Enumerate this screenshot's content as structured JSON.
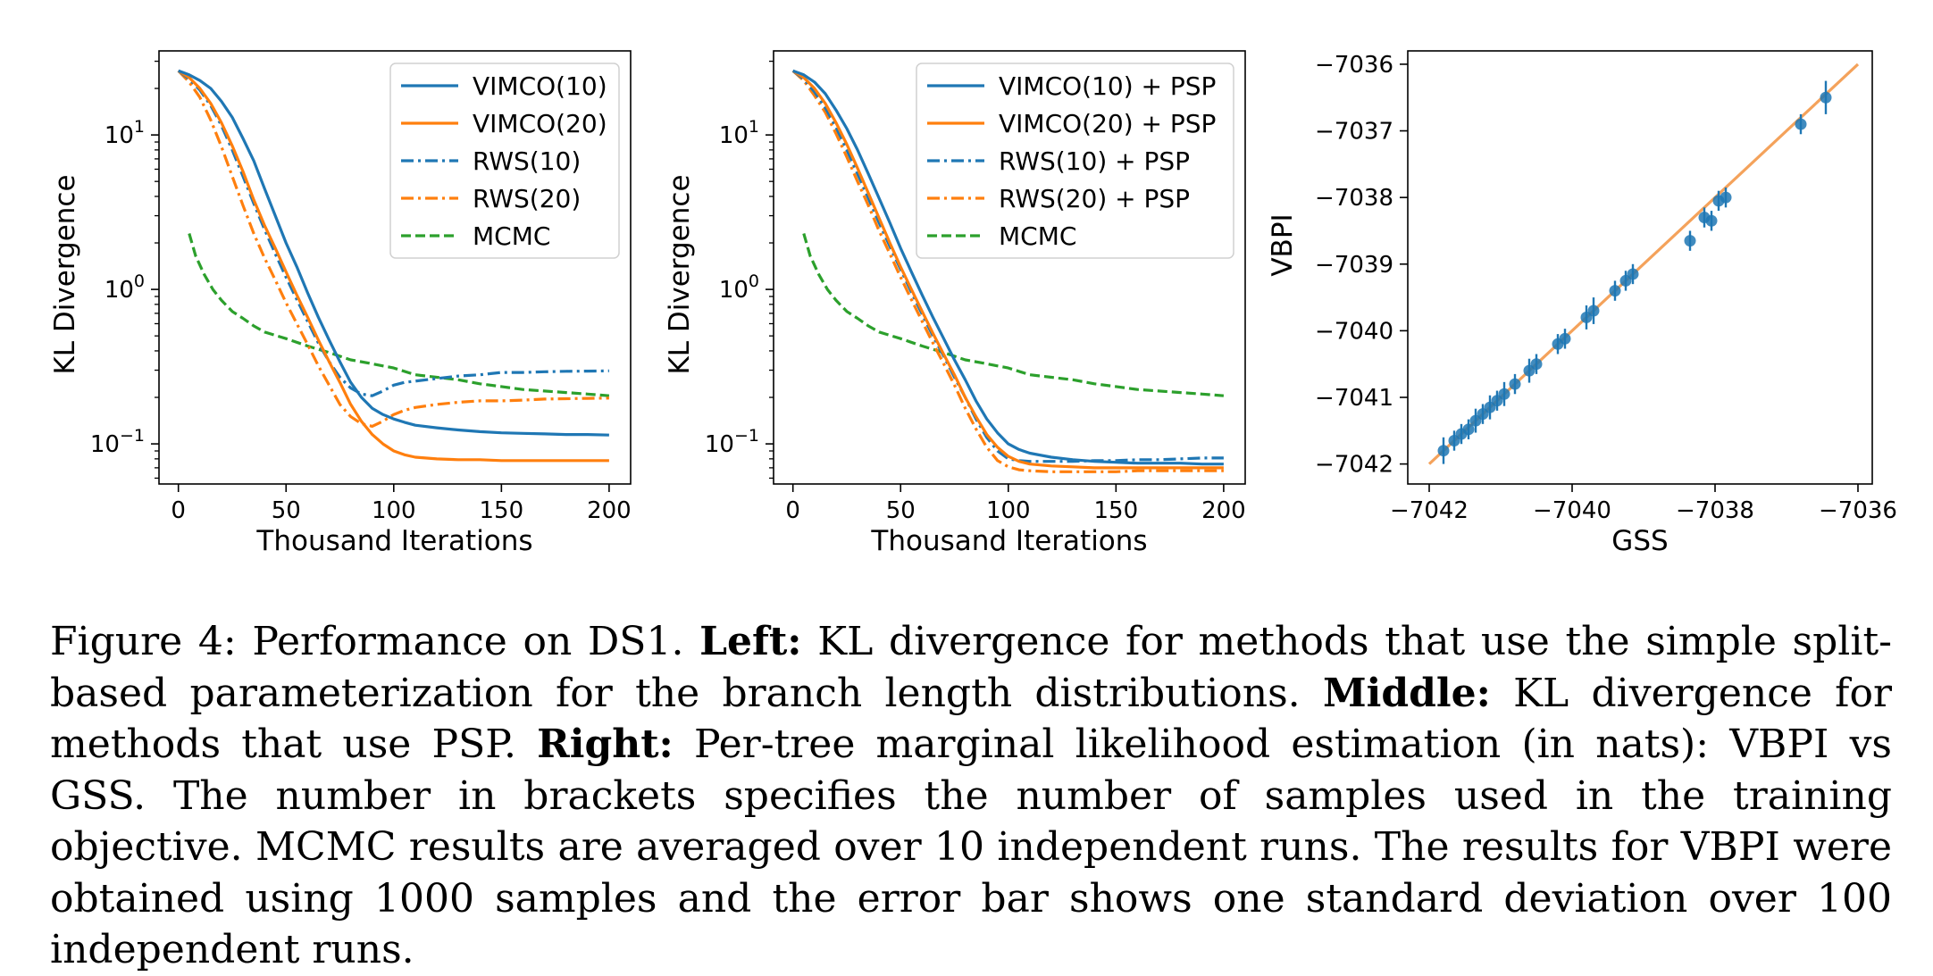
{
  "colors": {
    "blue": "#1f77b4",
    "orange": "#ff7f0e",
    "green": "#2ca02c",
    "fit_line": "#f4a25b"
  },
  "chart_data": [
    {
      "type": "line",
      "xlabel": "Thousand Iterations",
      "ylabel": "KL Divergence",
      "xlim": [
        -9,
        210
      ],
      "ylim": [
        0.055,
        35
      ],
      "yscale": "log",
      "xticks": [
        0,
        50,
        100,
        150,
        200
      ],
      "yticks": [
        {
          "value": 0.1,
          "base": "10",
          "exp": "−1"
        },
        {
          "value": 1,
          "base": "10",
          "exp": "0"
        },
        {
          "value": 10,
          "base": "10",
          "exp": "1"
        }
      ],
      "legend": "upper-right",
      "series": [
        {
          "name": "VIMCO(10)",
          "color": "blue",
          "style": "solid",
          "x": [
            0,
            5,
            10,
            15,
            20,
            25,
            30,
            35,
            40,
            45,
            50,
            55,
            60,
            65,
            70,
            75,
            80,
            85,
            90,
            95,
            100,
            105,
            110,
            120,
            130,
            140,
            150,
            160,
            170,
            180,
            190,
            200
          ],
          "y": [
            26,
            24.5,
            22.5,
            20,
            16.5,
            13,
            9.5,
            6.8,
            4.5,
            3,
            2,
            1.4,
            0.95,
            0.66,
            0.47,
            0.34,
            0.25,
            0.2,
            0.17,
            0.155,
            0.145,
            0.138,
            0.132,
            0.127,
            0.123,
            0.12,
            0.118,
            0.117,
            0.116,
            0.115,
            0.115,
            0.114
          ]
        },
        {
          "name": "VIMCO(20)",
          "color": "orange",
          "style": "solid",
          "x": [
            0,
            5,
            10,
            15,
            20,
            25,
            30,
            35,
            40,
            45,
            50,
            55,
            60,
            65,
            70,
            75,
            80,
            85,
            90,
            95,
            100,
            105,
            110,
            120,
            130,
            140,
            150,
            160,
            170,
            180,
            190,
            200
          ],
          "y": [
            26,
            23.5,
            20,
            16,
            12,
            8.5,
            5.8,
            3.8,
            2.6,
            1.85,
            1.3,
            0.92,
            0.66,
            0.47,
            0.34,
            0.25,
            0.18,
            0.14,
            0.115,
            0.1,
            0.09,
            0.085,
            0.082,
            0.08,
            0.079,
            0.079,
            0.078,
            0.078,
            0.078,
            0.078,
            0.078,
            0.078
          ]
        },
        {
          "name": "RWS(10)",
          "color": "blue",
          "style": "dashdot",
          "x": [
            0,
            5,
            10,
            15,
            20,
            25,
            30,
            35,
            40,
            45,
            50,
            55,
            60,
            65,
            70,
            75,
            80,
            85,
            90,
            95,
            100,
            105,
            110,
            120,
            130,
            140,
            150,
            160,
            170,
            180,
            190,
            200
          ],
          "y": [
            26,
            23,
            19.5,
            15.5,
            11.5,
            8,
            5.4,
            3.6,
            2.45,
            1.7,
            1.2,
            0.86,
            0.62,
            0.45,
            0.34,
            0.27,
            0.23,
            0.21,
            0.205,
            0.22,
            0.24,
            0.25,
            0.255,
            0.265,
            0.275,
            0.28,
            0.29,
            0.29,
            0.293,
            0.295,
            0.296,
            0.297
          ]
        },
        {
          "name": "RWS(20)",
          "color": "orange",
          "style": "dashdot",
          "x": [
            0,
            5,
            10,
            15,
            20,
            25,
            30,
            35,
            40,
            45,
            50,
            55,
            60,
            65,
            70,
            75,
            80,
            85,
            90,
            95,
            100,
            105,
            110,
            120,
            130,
            140,
            150,
            160,
            170,
            180,
            190,
            200
          ],
          "y": [
            26,
            22,
            17.5,
            12.5,
            8.4,
            5.4,
            3.5,
            2.3,
            1.6,
            1.15,
            0.82,
            0.6,
            0.44,
            0.32,
            0.24,
            0.18,
            0.15,
            0.135,
            0.13,
            0.14,
            0.155,
            0.165,
            0.172,
            0.18,
            0.186,
            0.19,
            0.19,
            0.192,
            0.195,
            0.196,
            0.197,
            0.198
          ]
        },
        {
          "name": "MCMC",
          "color": "green",
          "style": "dashed",
          "x": [
            5,
            8,
            12,
            16,
            20,
            25,
            30,
            35,
            40,
            50,
            60,
            70,
            80,
            90,
            100,
            110,
            120,
            130,
            140,
            150,
            160,
            170,
            180,
            190,
            200
          ],
          "y": [
            2.3,
            1.65,
            1.25,
            1.0,
            0.85,
            0.72,
            0.65,
            0.58,
            0.53,
            0.48,
            0.43,
            0.39,
            0.35,
            0.33,
            0.31,
            0.28,
            0.27,
            0.26,
            0.245,
            0.235,
            0.225,
            0.22,
            0.215,
            0.21,
            0.205
          ]
        }
      ]
    },
    {
      "type": "line",
      "xlabel": "Thousand Iterations",
      "ylabel": "KL Divergence",
      "xlim": [
        -9,
        210
      ],
      "ylim": [
        0.055,
        35
      ],
      "yscale": "log",
      "xticks": [
        0,
        50,
        100,
        150,
        200
      ],
      "yticks": [
        {
          "value": 0.1,
          "base": "10",
          "exp": "−1"
        },
        {
          "value": 1,
          "base": "10",
          "exp": "0"
        },
        {
          "value": 10,
          "base": "10",
          "exp": "1"
        }
      ],
      "legend": "upper-right",
      "series": [
        {
          "name": "VIMCO(10) + PSP",
          "color": "blue",
          "style": "solid",
          "x": [
            0,
            5,
            10,
            15,
            20,
            25,
            30,
            35,
            40,
            45,
            50,
            55,
            60,
            65,
            70,
            75,
            80,
            85,
            90,
            95,
            100,
            105,
            110,
            120,
            130,
            140,
            150,
            160,
            170,
            180,
            190,
            200
          ],
          "y": [
            26,
            24.5,
            22,
            18.5,
            14.5,
            11,
            8,
            5.6,
            3.9,
            2.7,
            1.85,
            1.3,
            0.92,
            0.66,
            0.48,
            0.35,
            0.26,
            0.19,
            0.145,
            0.118,
            0.1,
            0.092,
            0.087,
            0.082,
            0.079,
            0.077,
            0.076,
            0.075,
            0.075,
            0.075,
            0.074,
            0.074
          ]
        },
        {
          "name": "VIMCO(20) + PSP",
          "color": "orange",
          "style": "solid",
          "x": [
            0,
            5,
            10,
            15,
            20,
            25,
            30,
            35,
            40,
            45,
            50,
            55,
            60,
            65,
            70,
            75,
            80,
            85,
            90,
            95,
            100,
            105,
            110,
            120,
            130,
            140,
            150,
            160,
            170,
            180,
            190,
            200
          ],
          "y": [
            26,
            23.5,
            20,
            16,
            12,
            8.7,
            6.1,
            4.2,
            2.9,
            2.0,
            1.4,
            1.0,
            0.72,
            0.52,
            0.38,
            0.28,
            0.2,
            0.15,
            0.115,
            0.095,
            0.083,
            0.077,
            0.074,
            0.072,
            0.071,
            0.07,
            0.07,
            0.07,
            0.07,
            0.07,
            0.07,
            0.07
          ]
        },
        {
          "name": "RWS(10) + PSP",
          "color": "blue",
          "style": "dashdot",
          "x": [
            0,
            5,
            10,
            15,
            20,
            25,
            30,
            35,
            40,
            45,
            50,
            55,
            60,
            65,
            70,
            75,
            80,
            85,
            90,
            95,
            100,
            105,
            110,
            120,
            130,
            140,
            150,
            160,
            170,
            180,
            190,
            200
          ],
          "y": [
            26,
            23,
            19,
            15,
            11.2,
            8,
            5.6,
            3.9,
            2.7,
            1.9,
            1.35,
            0.96,
            0.69,
            0.5,
            0.37,
            0.27,
            0.2,
            0.145,
            0.11,
            0.09,
            0.08,
            0.078,
            0.077,
            0.077,
            0.077,
            0.078,
            0.078,
            0.079,
            0.079,
            0.08,
            0.081,
            0.081
          ]
        },
        {
          "name": "RWS(20) + PSP",
          "color": "orange",
          "style": "dashdot",
          "x": [
            0,
            5,
            10,
            15,
            20,
            25,
            30,
            35,
            40,
            45,
            50,
            55,
            60,
            65,
            70,
            75,
            80,
            85,
            90,
            95,
            100,
            105,
            110,
            120,
            130,
            140,
            150,
            160,
            170,
            180,
            190,
            200
          ],
          "y": [
            26,
            22.5,
            18,
            14,
            10.2,
            7.2,
            5,
            3.5,
            2.4,
            1.7,
            1.2,
            0.86,
            0.62,
            0.45,
            0.33,
            0.24,
            0.17,
            0.125,
            0.095,
            0.078,
            0.071,
            0.068,
            0.067,
            0.066,
            0.066,
            0.066,
            0.066,
            0.067,
            0.067,
            0.067,
            0.067,
            0.067
          ]
        },
        {
          "name": "MCMC",
          "color": "green",
          "style": "dashed",
          "x": [
            5,
            8,
            12,
            16,
            20,
            25,
            30,
            35,
            40,
            50,
            60,
            70,
            80,
            90,
            100,
            110,
            120,
            130,
            140,
            150,
            160,
            170,
            180,
            190,
            200
          ],
          "y": [
            2.3,
            1.65,
            1.25,
            1.0,
            0.85,
            0.72,
            0.65,
            0.58,
            0.53,
            0.48,
            0.43,
            0.39,
            0.35,
            0.33,
            0.31,
            0.28,
            0.27,
            0.26,
            0.245,
            0.235,
            0.225,
            0.22,
            0.215,
            0.21,
            0.205
          ]
        }
      ]
    },
    {
      "type": "scatter",
      "xlabel": "GSS",
      "ylabel": "VBPI",
      "xlim": [
        -7042.3,
        -7035.8
      ],
      "ylim": [
        -7042.3,
        -7035.8
      ],
      "xticks": [
        {
          "value": -7042,
          "label": "−7042"
        },
        {
          "value": -7040,
          "label": "−7040"
        },
        {
          "value": -7038,
          "label": "−7038"
        },
        {
          "value": -7036,
          "label": "−7036"
        }
      ],
      "yticks": [
        {
          "value": -7042,
          "label": "−7042"
        },
        {
          "value": -7041,
          "label": "−7041"
        },
        {
          "value": -7040,
          "label": "−7040"
        },
        {
          "value": -7039,
          "label": "−7039"
        },
        {
          "value": -7038,
          "label": "−7038"
        },
        {
          "value": -7037,
          "label": "−7037"
        },
        {
          "value": -7036,
          "label": "−7036"
        }
      ],
      "reference_line": {
        "x": [
          -7042,
          -7036
        ],
        "y": [
          -7042,
          -7036
        ],
        "color": "fit_line"
      },
      "points": [
        {
          "x": -7041.8,
          "y": -7041.8,
          "err": 0.2
        },
        {
          "x": -7041.65,
          "y": -7041.65,
          "err": 0.15
        },
        {
          "x": -7041.55,
          "y": -7041.55,
          "err": 0.15
        },
        {
          "x": -7041.45,
          "y": -7041.48,
          "err": 0.15
        },
        {
          "x": -7041.35,
          "y": -7041.35,
          "err": 0.18
        },
        {
          "x": -7041.25,
          "y": -7041.25,
          "err": 0.15
        },
        {
          "x": -7041.15,
          "y": -7041.15,
          "err": 0.18
        },
        {
          "x": -7041.05,
          "y": -7041.05,
          "err": 0.15
        },
        {
          "x": -7040.95,
          "y": -7040.95,
          "err": 0.18
        },
        {
          "x": -7040.8,
          "y": -7040.8,
          "err": 0.15
        },
        {
          "x": -7040.6,
          "y": -7040.6,
          "err": 0.18
        },
        {
          "x": -7040.5,
          "y": -7040.5,
          "err": 0.15
        },
        {
          "x": -7040.2,
          "y": -7040.2,
          "err": 0.15
        },
        {
          "x": -7040.1,
          "y": -7040.12,
          "err": 0.15
        },
        {
          "x": -7039.8,
          "y": -7039.8,
          "err": 0.18
        },
        {
          "x": -7039.7,
          "y": -7039.7,
          "err": 0.2
        },
        {
          "x": -7039.4,
          "y": -7039.4,
          "err": 0.15
        },
        {
          "x": -7039.25,
          "y": -7039.25,
          "err": 0.15
        },
        {
          "x": -7039.15,
          "y": -7039.15,
          "err": 0.15
        },
        {
          "x": -7038.35,
          "y": -7038.65,
          "err": 0.15
        },
        {
          "x": -7038.15,
          "y": -7038.3,
          "err": 0.15
        },
        {
          "x": -7038.05,
          "y": -7038.35,
          "err": 0.15
        },
        {
          "x": -7037.95,
          "y": -7038.05,
          "err": 0.15
        },
        {
          "x": -7037.85,
          "y": -7038.0,
          "err": 0.15
        },
        {
          "x": -7036.8,
          "y": -7036.9,
          "err": 0.15
        },
        {
          "x": -7036.45,
          "y": -7036.5,
          "err": 0.25
        }
      ]
    }
  ],
  "caption": {
    "fig_label": "Figure 4:",
    "intro": " Performance on DS1. ",
    "left_label": "Left:",
    "left_text": " KL divergence for methods that use the simple split-based parameterization for the branch length distributions. ",
    "middle_label": "Middle:",
    "middle_text": " KL divergence for methods that use PSP. ",
    "right_label": "Right:",
    "right_text": " Per-tree marginal likelihood estimation (in nats): VBPI vs GSS. The number in brackets specifies the number of samples used in the training objective. MCMC results are averaged over 10 independent runs. The results for VBPI were obtained using 1000 samples and the error bar shows one standard deviation over 100 independent runs."
  }
}
